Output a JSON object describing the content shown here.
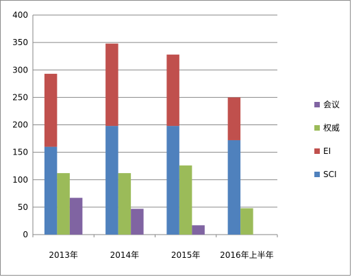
{
  "chart_data": {
    "type": "bar",
    "stacked_groups": [
      [
        "SCI",
        "EI"
      ],
      [
        "权威"
      ],
      [
        "会议"
      ]
    ],
    "categories": [
      "2013年",
      "2014年",
      "2015年",
      "2016年上半年"
    ],
    "series": [
      {
        "name": "SCI",
        "values": [
          160,
          198,
          198,
          172
        ],
        "color": "#4F81BD"
      },
      {
        "name": "EI",
        "values": [
          133,
          150,
          130,
          78
        ],
        "color": "#C0504D"
      },
      {
        "name": "权威",
        "values": [
          112,
          112,
          126,
          48
        ],
        "color": "#9BBB59"
      },
      {
        "name": "会议",
        "values": [
          67,
          47,
          17,
          0
        ],
        "color": "#8064A2"
      }
    ],
    "legend_order": [
      "会议",
      "权威",
      "EI",
      "SCI"
    ],
    "legend_position": "right",
    "ylim": [
      0,
      400
    ],
    "yticks": [
      0,
      50,
      100,
      150,
      200,
      250,
      300,
      350,
      400
    ],
    "grid": true,
    "title": "",
    "xlabel": "",
    "ylabel": ""
  }
}
